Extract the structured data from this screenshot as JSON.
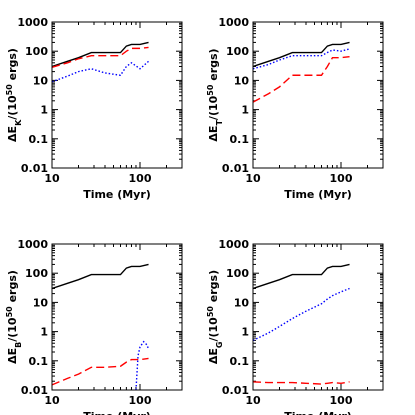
{
  "chart_data": [
    {
      "type": "line",
      "xlabel": "Time (Myr)",
      "ylabel": [
        "ΔE",
        "K",
        "/(10",
        "50",
        " ergs)"
      ],
      "log_x": true,
      "log_y": true,
      "xlim": [
        10,
        300
      ],
      "ylim": [
        0.01,
        1000
      ],
      "xticks": [
        10,
        100
      ],
      "yticks": [
        0.01,
        0.1,
        1,
        10,
        100,
        1000
      ],
      "series": [
        {
          "color": "#000000",
          "dash": "solid",
          "x": [
            10,
            15,
            20,
            28,
            40,
            60,
            70,
            80,
            100,
            125
          ],
          "values": [
            30,
            45,
            60,
            90,
            90,
            90,
            150,
            170,
            170,
            200
          ]
        },
        {
          "color": "#ff0000",
          "dash": "dashed",
          "x": [
            10,
            15,
            20,
            28,
            40,
            60,
            70,
            80,
            100,
            125
          ],
          "values": [
            28,
            40,
            55,
            70,
            70,
            70,
            100,
            125,
            125,
            135
          ]
        },
        {
          "color": "#0000ff",
          "dash": "dotted",
          "x": [
            10,
            15,
            20,
            28,
            40,
            60,
            70,
            80,
            100,
            125
          ],
          "values": [
            9,
            14,
            20,
            25,
            18,
            15,
            30,
            40,
            25,
            45
          ]
        }
      ]
    },
    {
      "type": "line",
      "xlabel": "Time (Myr)",
      "ylabel": [
        "ΔE",
        "T",
        "/(10",
        "50",
        " ergs)"
      ],
      "log_x": true,
      "log_y": true,
      "xlim": [
        10,
        300
      ],
      "ylim": [
        0.01,
        1000
      ],
      "xticks": [
        10,
        100
      ],
      "yticks": [
        0.01,
        0.1,
        1,
        10,
        100,
        1000
      ],
      "series": [
        {
          "color": "#000000",
          "dash": "solid",
          "x": [
            10,
            15,
            20,
            28,
            40,
            60,
            70,
            80,
            100,
            125
          ],
          "values": [
            30,
            45,
            60,
            90,
            90,
            90,
            150,
            170,
            170,
            200
          ]
        },
        {
          "color": "#0000ff",
          "dash": "dotted",
          "x": [
            10,
            15,
            20,
            28,
            40,
            60,
            70,
            80,
            100,
            125
          ],
          "values": [
            25,
            35,
            50,
            70,
            70,
            70,
            90,
            110,
            100,
            120
          ]
        },
        {
          "color": "#ff0000",
          "dash": "dashed",
          "x": [
            10,
            15,
            20,
            28,
            40,
            60,
            70,
            80,
            100,
            125
          ],
          "values": [
            1.8,
            3.5,
            6,
            15,
            15,
            15,
            30,
            60,
            60,
            65
          ]
        }
      ]
    },
    {
      "type": "line",
      "xlabel": "Time (Myr)",
      "ylabel": [
        "ΔE",
        "B",
        "/(10",
        "50",
        " ergs)"
      ],
      "log_x": true,
      "log_y": true,
      "xlim": [
        10,
        300
      ],
      "ylim": [
        0.01,
        1000
      ],
      "xticks": [
        10,
        100
      ],
      "yticks": [
        0.01,
        0.1,
        1,
        10,
        100,
        1000
      ],
      "series": [
        {
          "color": "#000000",
          "dash": "solid",
          "x": [
            10,
            15,
            20,
            28,
            40,
            60,
            70,
            80,
            100,
            125
          ],
          "values": [
            30,
            45,
            60,
            90,
            90,
            90,
            150,
            170,
            170,
            200
          ]
        },
        {
          "color": "#ff0000",
          "dash": "dashed",
          "x": [
            10,
            15,
            20,
            28,
            40,
            60,
            70,
            80,
            100,
            125
          ],
          "values": [
            0.015,
            0.025,
            0.035,
            0.06,
            0.06,
            0.065,
            0.09,
            0.11,
            0.11,
            0.12
          ]
        },
        {
          "color": "#0000ff",
          "dash": "dotted",
          "x": [
            90,
            95,
            100,
            110,
            120,
            125
          ],
          "values": [
            0.01,
            0.15,
            0.3,
            0.45,
            0.35,
            0.25
          ]
        }
      ]
    },
    {
      "type": "line",
      "xlabel": "Time (Myr)",
      "ylabel": [
        "ΔE",
        "G",
        "/(10",
        "50",
        " ergs)"
      ],
      "log_x": true,
      "log_y": true,
      "xlim": [
        10,
        300
      ],
      "ylim": [
        0.01,
        1000
      ],
      "xticks": [
        10,
        100
      ],
      "yticks": [
        0.01,
        0.1,
        1,
        10,
        100,
        1000
      ],
      "series": [
        {
          "color": "#000000",
          "dash": "solid",
          "x": [
            10,
            15,
            20,
            28,
            40,
            60,
            70,
            80,
            100,
            125
          ],
          "values": [
            30,
            45,
            60,
            90,
            90,
            90,
            150,
            170,
            170,
            200
          ]
        },
        {
          "color": "#0000ff",
          "dash": "dotted",
          "x": [
            10,
            15,
            20,
            28,
            40,
            60,
            70,
            80,
            100,
            125
          ],
          "values": [
            0.5,
            0.9,
            1.5,
            2.8,
            5,
            9,
            13,
            17,
            23,
            30
          ]
        },
        {
          "color": "#ff0000",
          "dash": "dashed",
          "x": [
            10,
            15,
            20,
            28,
            40,
            60,
            70,
            80,
            100,
            125
          ],
          "values": [
            0.019,
            0.018,
            0.018,
            0.018,
            0.017,
            0.016,
            0.017,
            0.018,
            0.017,
            0.019
          ]
        }
      ]
    }
  ]
}
